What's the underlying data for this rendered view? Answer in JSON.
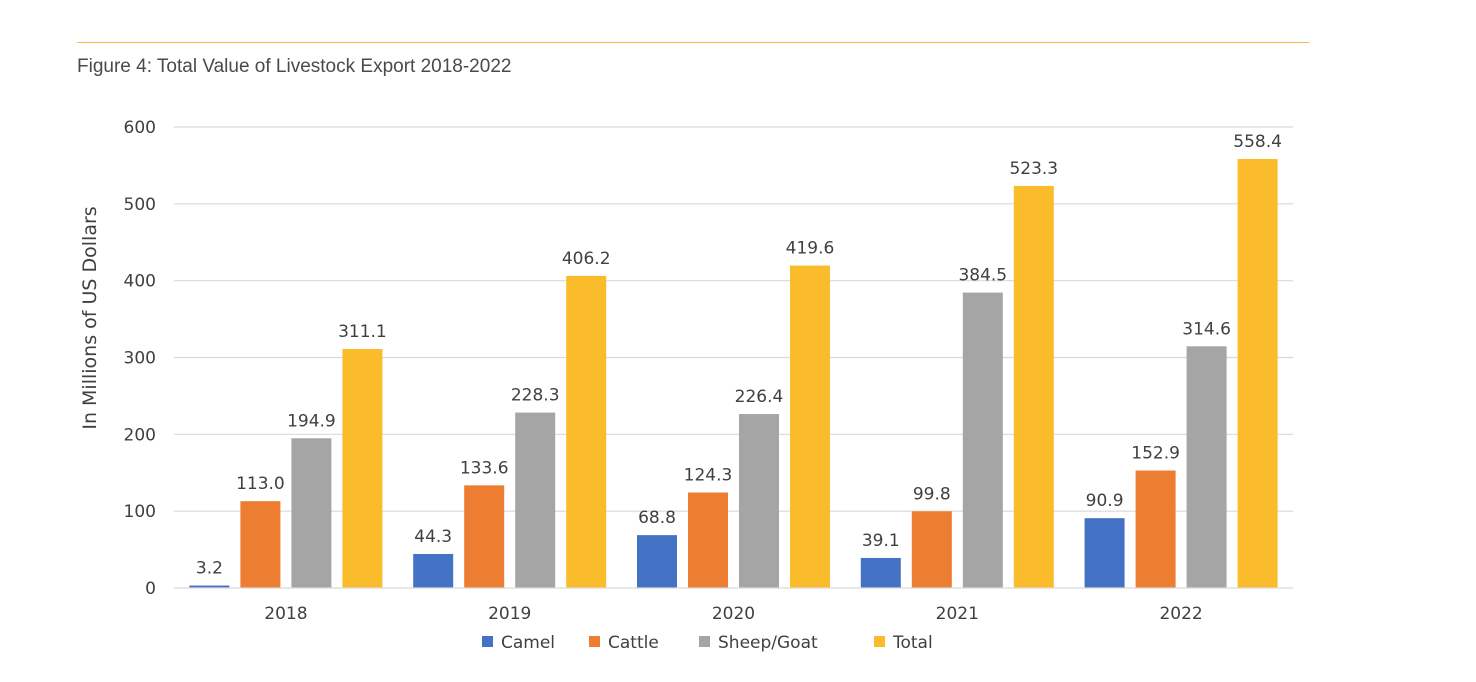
{
  "figure": {
    "title": "Figure 4: Total Value of Livestock Export 2018-2022"
  },
  "chart_data": {
    "type": "bar",
    "title": "Figure 4: Total Value of Livestock Export 2018-2022",
    "xlabel": "",
    "ylabel": "In Millions of US Dollars",
    "ylim": [
      0,
      600
    ],
    "yticks": [
      0,
      100,
      200,
      300,
      400,
      500,
      600
    ],
    "grid": true,
    "legend_position": "bottom",
    "categories": [
      "2018",
      "2019",
      "2020",
      "2021",
      "2022"
    ],
    "series": [
      {
        "name": "Camel",
        "color": "#4472c4",
        "values": [
          3.2,
          44.3,
          68.8,
          39.1,
          90.9
        ]
      },
      {
        "name": "Cattle",
        "color": "#ed7d31",
        "values": [
          113.0,
          133.6,
          124.3,
          99.8,
          152.9
        ]
      },
      {
        "name": "Sheep/Goat",
        "color": "#a5a5a5",
        "values": [
          194.9,
          228.3,
          226.4,
          384.5,
          314.6
        ]
      },
      {
        "name": "Total",
        "color": "#fbbc2b",
        "values": [
          311.1,
          406.2,
          419.6,
          523.3,
          558.4
        ]
      }
    ]
  }
}
